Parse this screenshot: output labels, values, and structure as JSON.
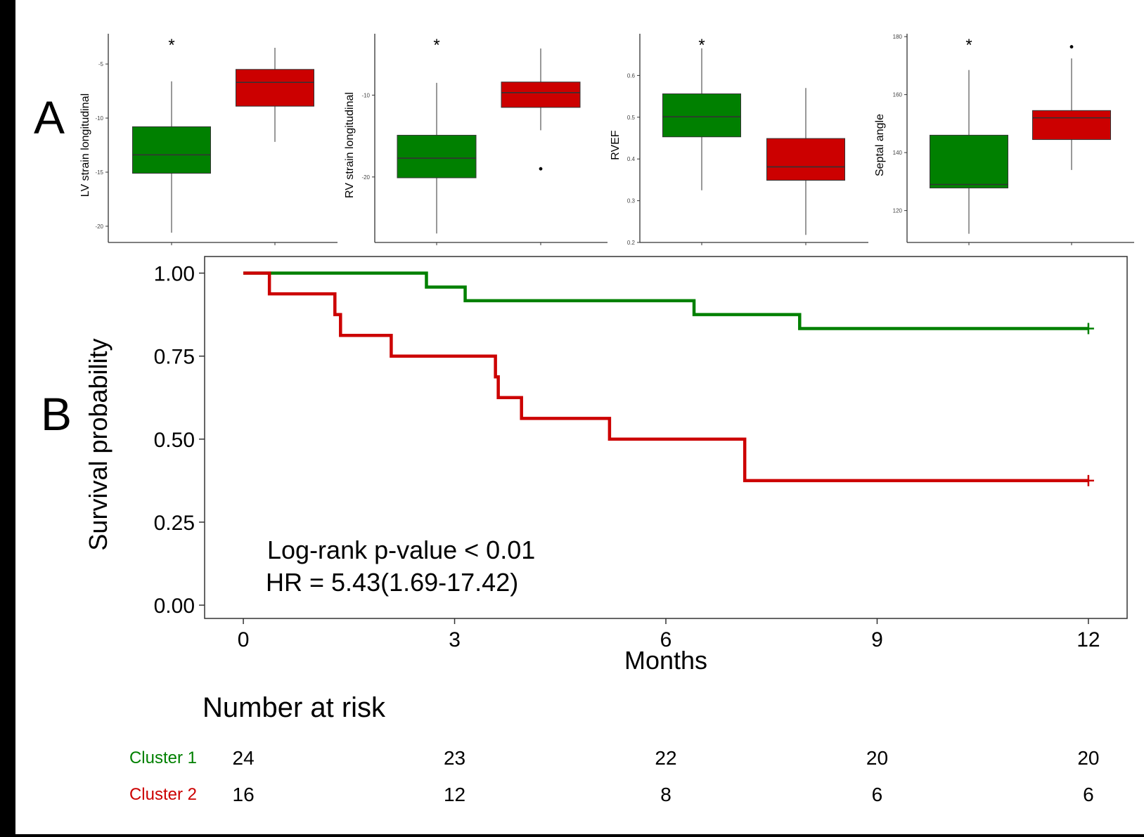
{
  "panel_labels": [
    "A",
    "B"
  ],
  "colors": {
    "cluster1": "#008000",
    "cluster2": "#cc0000",
    "box_edge": "#333333",
    "frame": "#333333"
  },
  "chart_data": [
    {
      "type": "box",
      "ylabel": "LV strain longitudinal",
      "ylim": [
        -21.5,
        -2.2
      ],
      "yticks": [
        -20,
        -15,
        -10,
        -5
      ],
      "ytick_labels": [
        "-20",
        "-15",
        "-10",
        "-5"
      ],
      "significance": "*",
      "grid": false,
      "boxes": [
        {
          "group": "Cluster 1",
          "whisker_low": -20.6,
          "q1": -15.1,
          "median": -13.4,
          "q3": -10.8,
          "whisker_high": -6.6,
          "outliers": []
        },
        {
          "group": "Cluster 2",
          "whisker_low": -12.2,
          "q1": -8.9,
          "median": -6.7,
          "q3": -5.5,
          "whisker_high": -3.5,
          "outliers": []
        }
      ]
    },
    {
      "type": "box",
      "ylabel": "RV strain longitudinal",
      "ylim": [
        -28,
        -2.5
      ],
      "yticks": [
        -20,
        -10
      ],
      "ytick_labels": [
        "-20",
        "-10"
      ],
      "significance": "*",
      "grid": false,
      "boxes": [
        {
          "group": "Cluster 1",
          "whisker_low": -26.9,
          "q1": -20.1,
          "median": -17.7,
          "q3": -14.9,
          "whisker_high": -8.5,
          "outliers": []
        },
        {
          "group": "Cluster 2",
          "whisker_low": -14.3,
          "q1": -11.5,
          "median": -9.7,
          "q3": -8.4,
          "whisker_high": -4.3,
          "outliers": [
            -19.0
          ]
        }
      ]
    },
    {
      "type": "box",
      "ylabel": "RVEF",
      "ylim": [
        0.2,
        0.7
      ],
      "yticks": [
        0.2,
        0.3,
        0.4,
        0.5,
        0.6
      ],
      "ytick_labels": [
        "0.2",
        "0.3",
        "0.4",
        "0.5",
        "0.6"
      ],
      "significance": "*",
      "grid": false,
      "boxes": [
        {
          "group": "Cluster 1",
          "whisker_low": 0.325,
          "q1": 0.453,
          "median": 0.501,
          "q3": 0.556,
          "whisker_high": 0.665,
          "outliers": []
        },
        {
          "group": "Cluster 2",
          "whisker_low": 0.218,
          "q1": 0.349,
          "median": 0.381,
          "q3": 0.449,
          "whisker_high": 0.57,
          "outliers": []
        }
      ]
    },
    {
      "type": "box",
      "ylabel": "Septal angle",
      "ylim": [
        109,
        181
      ],
      "yticks": [
        120,
        140,
        160,
        180
      ],
      "ytick_labels": [
        "120",
        "140",
        "160",
        "180"
      ],
      "significance": "*",
      "grid": false,
      "boxes": [
        {
          "group": "Cluster 1",
          "whisker_low": 112,
          "q1": 127.8,
          "median": 129.0,
          "q3": 146.0,
          "whisker_high": 168.5,
          "outliers": []
        },
        {
          "group": "Cluster 2",
          "whisker_low": 134,
          "q1": 144.5,
          "median": 152.0,
          "q3": 154.5,
          "whisker_high": 172.5,
          "outliers": [
            176.5
          ]
        }
      ]
    },
    {
      "type": "line",
      "subtype": "step",
      "xlabel": "Months",
      "ylabel": "Survival probability",
      "xlim": [
        -0.55,
        12.55
      ],
      "ylim": [
        -0.04,
        1.05
      ],
      "xticks": [
        0,
        3,
        6,
        9,
        12
      ],
      "xtick_labels": [
        "0",
        "3",
        "6",
        "9",
        "12"
      ],
      "yticks": [
        0,
        0.25,
        0.5,
        0.75,
        1.0
      ],
      "ytick_labels": [
        "0.00",
        "0.25",
        "0.50",
        "0.75",
        "1.00"
      ],
      "grid": false,
      "annotations": [
        "Log-rank p-value < 0.01",
        "HR = 5.43(1.69-17.42)"
      ],
      "series": [
        {
          "group": "Cluster 1",
          "times": [
            0,
            2.6,
            3.15,
            6.4,
            7.9,
            12
          ],
          "survival": [
            1.0,
            0.958,
            0.917,
            0.875,
            0.833,
            0.833
          ],
          "censor": [
            12
          ]
        },
        {
          "group": "Cluster 2",
          "times": [
            0,
            0.37,
            1.3,
            1.38,
            2.1,
            3.58,
            3.62,
            3.95,
            5.2,
            7.12,
            12
          ],
          "survival": [
            1.0,
            0.9375,
            0.875,
            0.8125,
            0.75,
            0.6875,
            0.625,
            0.5625,
            0.5,
            0.375,
            0.375
          ],
          "censor": [
            12
          ]
        }
      ]
    },
    {
      "type": "table",
      "title": "Number at risk",
      "columns": [
        0,
        3,
        6,
        9,
        12
      ],
      "rows": [
        {
          "label": "Cluster 1",
          "values": [
            "24",
            "23",
            "22",
            "20",
            "20"
          ]
        },
        {
          "label": "Cluster 2",
          "values": [
            "16",
            "12",
            "8",
            "6",
            "6"
          ]
        }
      ]
    }
  ]
}
